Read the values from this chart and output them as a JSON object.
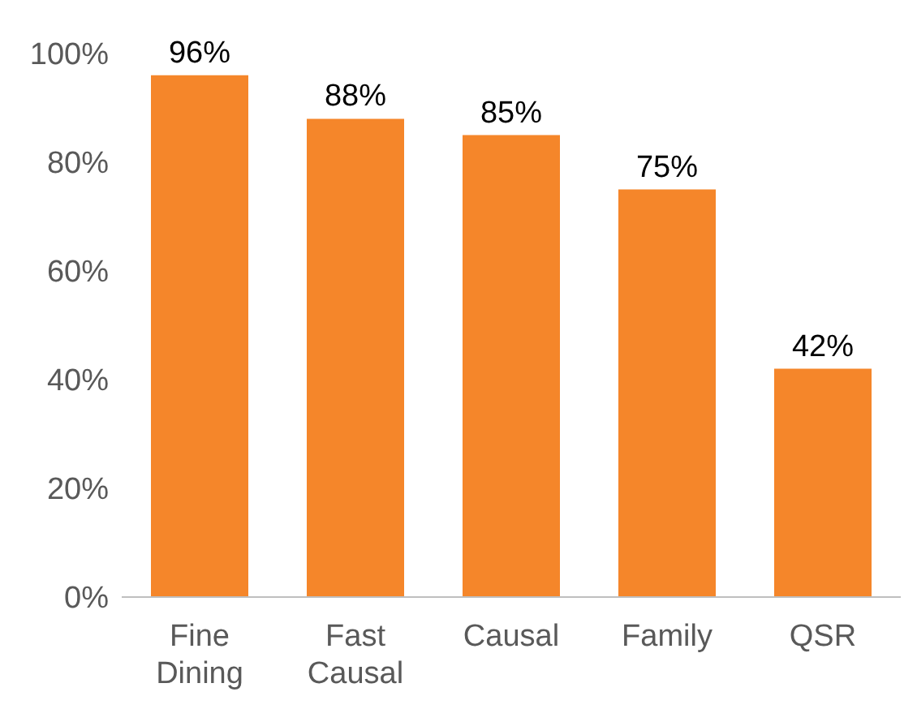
{
  "chart_data": {
    "type": "bar",
    "categories": [
      "Fine Dining",
      "Fast Causal",
      "Causal",
      "Family",
      "QSR"
    ],
    "values": [
      96,
      88,
      85,
      75,
      42
    ],
    "value_labels": [
      "96%",
      "88%",
      "85%",
      "75%",
      "42%"
    ],
    "color": "#f5862a",
    "ylim": [
      0,
      100
    ],
    "yticks": [
      {
        "value": 0,
        "label": "0%"
      },
      {
        "value": 20,
        "label": "20%"
      },
      {
        "value": 40,
        "label": "40%"
      },
      {
        "value": 60,
        "label": "60%"
      },
      {
        "value": 80,
        "label": "80%"
      },
      {
        "value": 100,
        "label": "100%"
      }
    ],
    "grid": false,
    "legend": false
  }
}
